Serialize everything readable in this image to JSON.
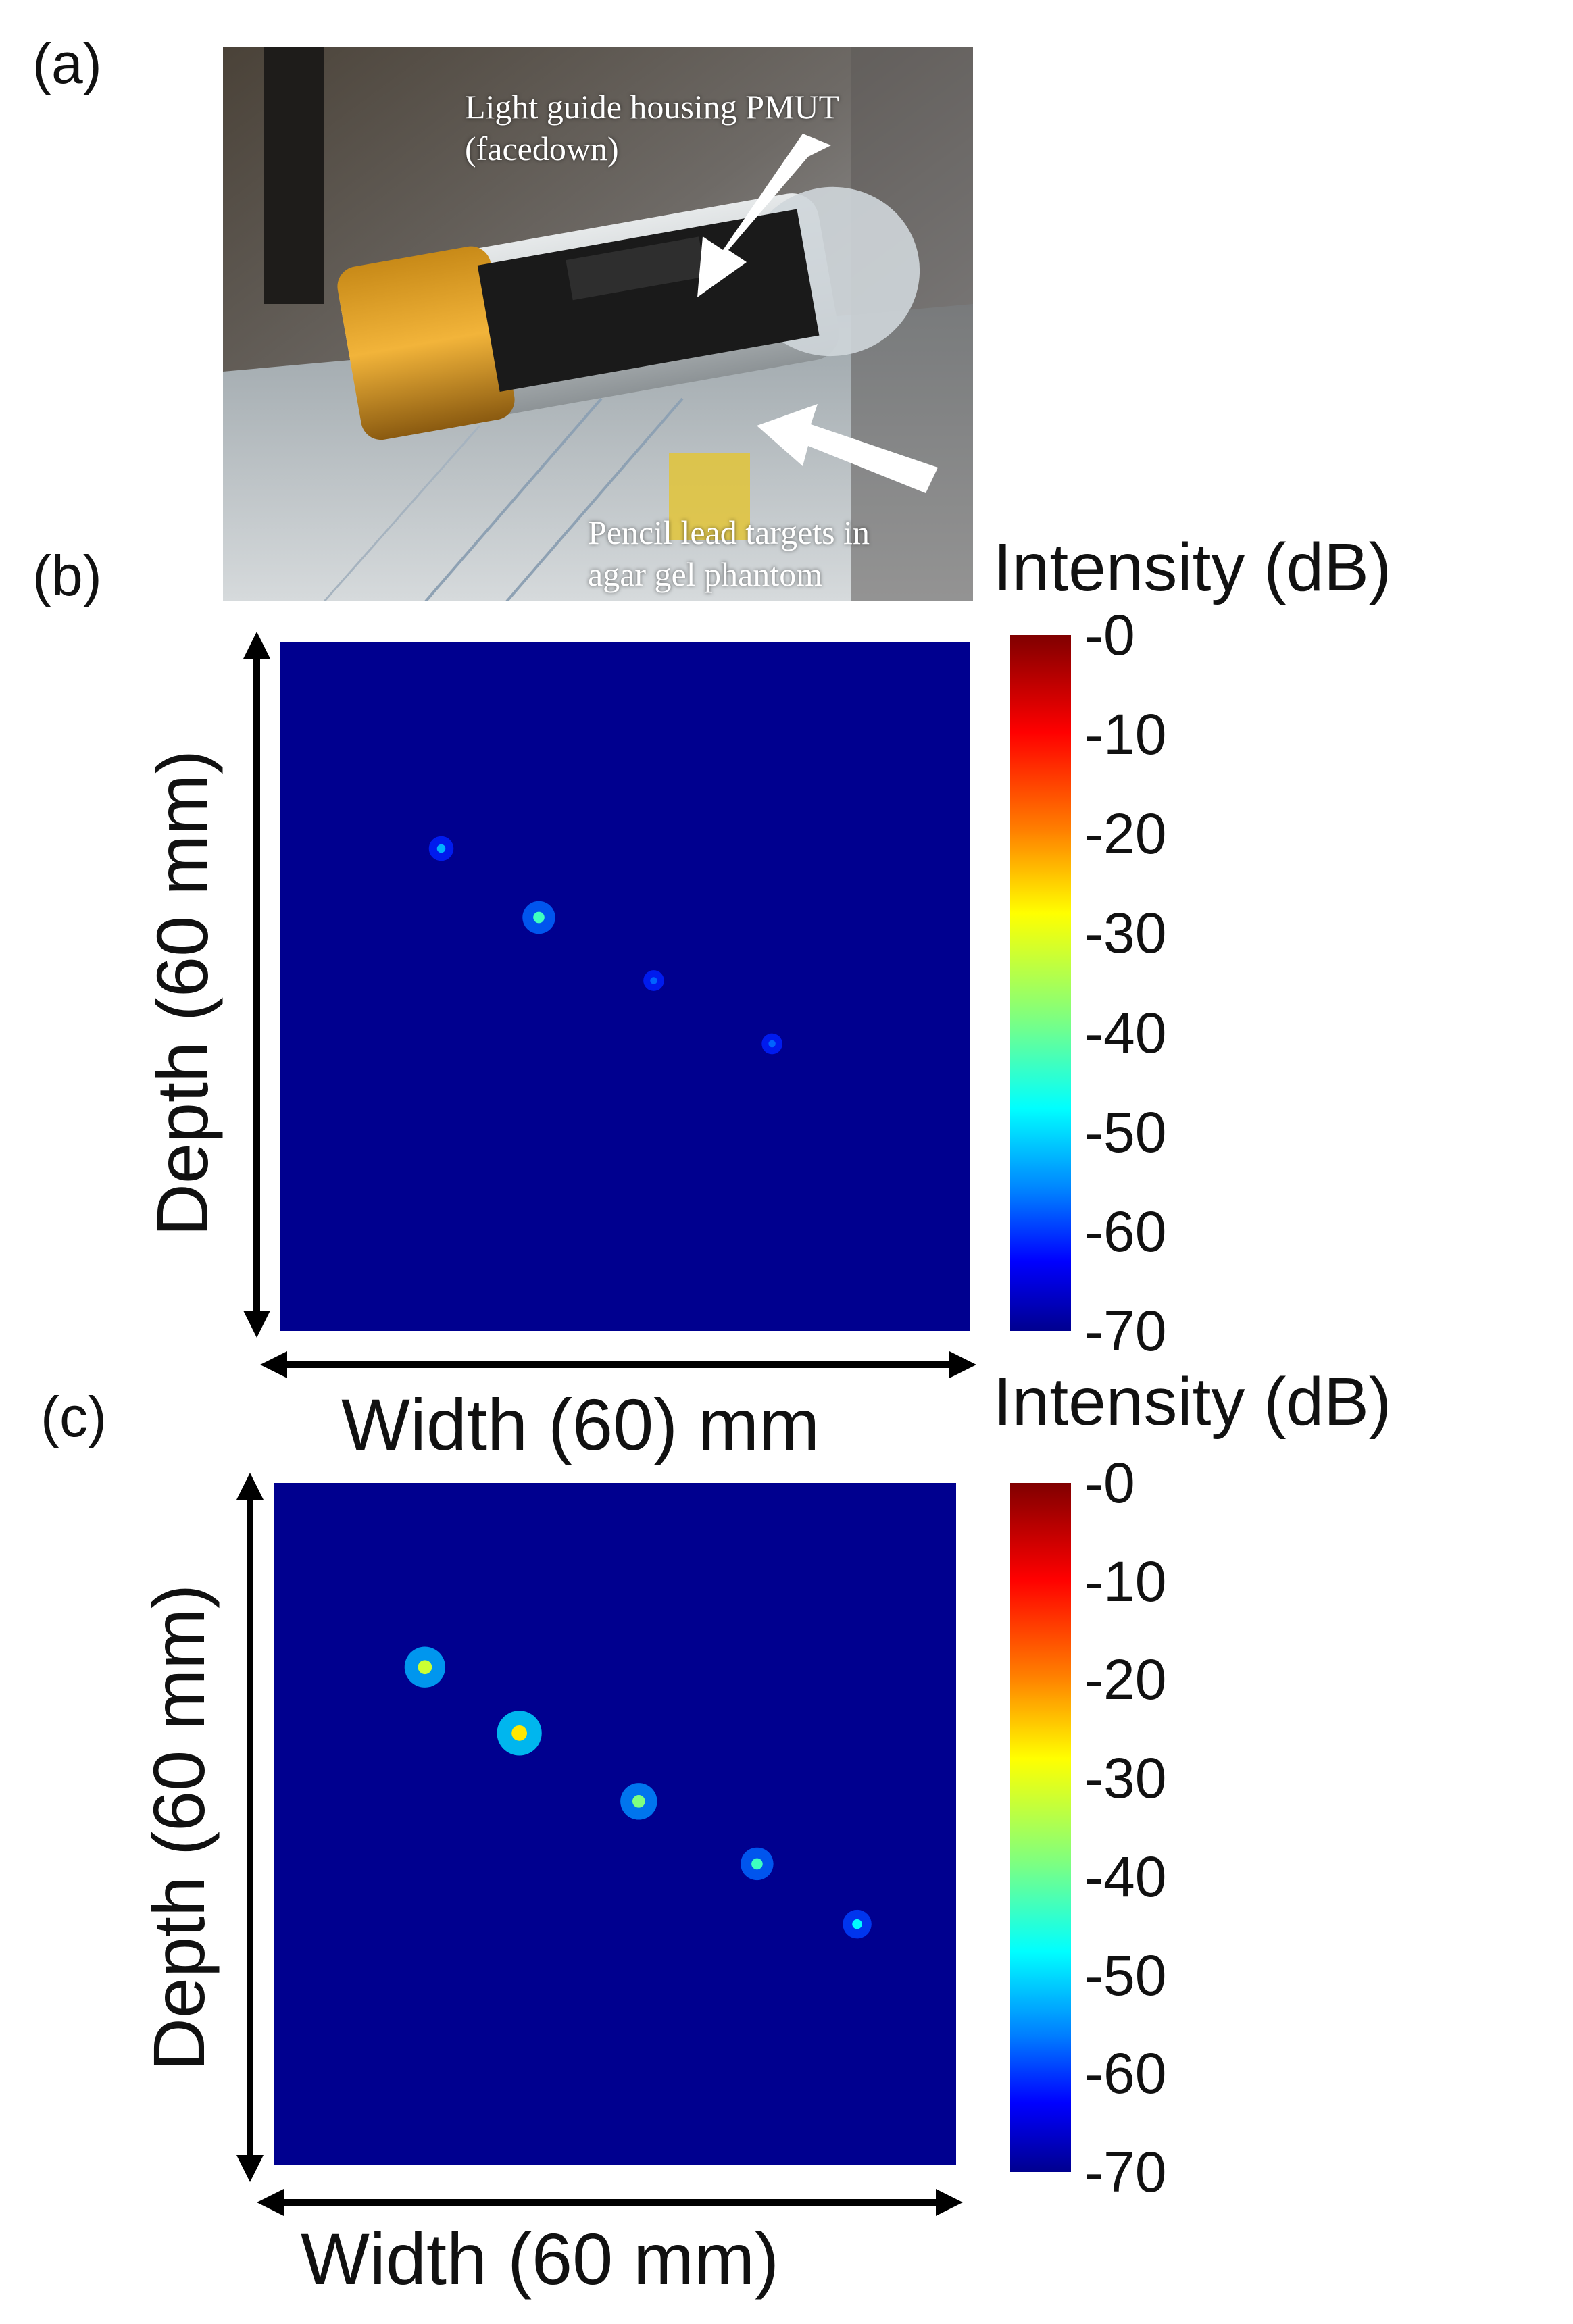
{
  "panels": {
    "a": {
      "label": "(a)",
      "photo": {
        "annotation_top": [
          "Light guide housing PMUT",
          "(facedown)"
        ],
        "annotation_bottom": [
          "Pencil lead targets in",
          "agar gel phantom"
        ]
      }
    },
    "b": {
      "label": "(b)",
      "ylabel": "Depth (60 mm)",
      "xlabel": "Width (60) mm",
      "colorbar_title": "Intensity (dB)"
    },
    "c": {
      "label": "(c)",
      "ylabel": "Depth (60 mm)",
      "xlabel": "Width (60 mm)",
      "colorbar_title": "Intensity (dB)"
    }
  },
  "chart_data": [
    {
      "type": "heatmap",
      "panel": "b",
      "xlabel": "Width (60) mm",
      "ylabel": "Depth (60 mm)",
      "colorbar": {
        "label": "Intensity (dB)",
        "range": [
          -70,
          0
        ],
        "ticks": [
          "-0",
          "-10",
          "-20",
          "-30",
          "-40",
          "-50",
          "-60",
          "-70"
        ]
      },
      "background_value": -70,
      "targets": [
        {
          "x": 14.0,
          "y": 18.0,
          "intensity": -50
        },
        {
          "x": 22.5,
          "y": 24.0,
          "intensity": -40
        },
        {
          "x": 32.5,
          "y": 29.5,
          "intensity": -55
        },
        {
          "x": 42.8,
          "y": 35.0,
          "intensity": -55
        }
      ]
    },
    {
      "type": "heatmap",
      "panel": "c",
      "xlabel": "Width (60 mm)",
      "ylabel": "Depth (60 mm)",
      "colorbar": {
        "label": "Intensity (dB)",
        "range": [
          -70,
          0
        ],
        "ticks": [
          "-0",
          "-10",
          "-20",
          "-30",
          "-40",
          "-50",
          "-60",
          "-70"
        ]
      },
      "background_value": -70,
      "targets": [
        {
          "x": 13.3,
          "y": 16.2,
          "intensity": -30
        },
        {
          "x": 21.6,
          "y": 22.0,
          "intensity": -25
        },
        {
          "x": 32.1,
          "y": 28.0,
          "intensity": -35
        },
        {
          "x": 42.5,
          "y": 33.5,
          "intensity": -40
        },
        {
          "x": 51.3,
          "y": 38.8,
          "intensity": -45
        }
      ]
    }
  ]
}
